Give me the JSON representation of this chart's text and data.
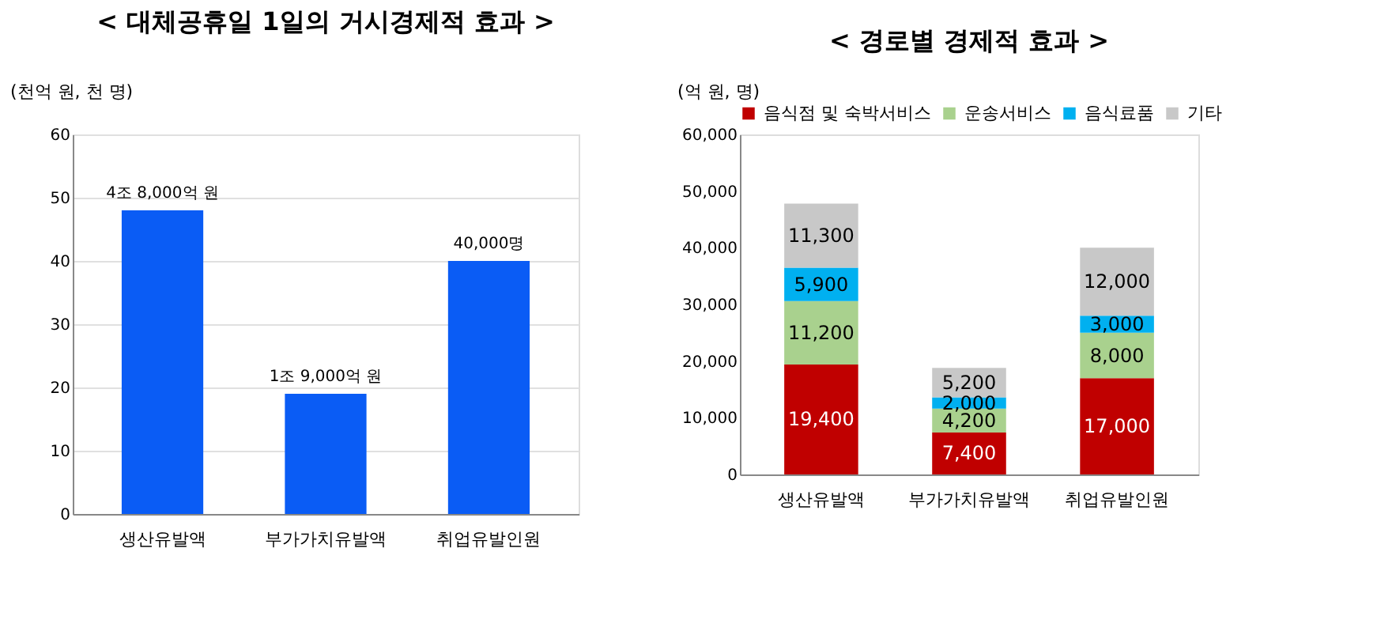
{
  "chart_data": [
    {
      "type": "bar",
      "title": "< 대체공휴일 1일의 거시경제적 효과 >",
      "ylabel": "(천억 원, 천 명)",
      "categories": [
        "생산유발액",
        "부가가치유발액",
        "취업유발인원"
      ],
      "values": [
        48,
        19,
        40
      ],
      "annotations": [
        {
          "text": "4조 8,000억 원",
          "x": "생산유발액",
          "y": 48
        },
        {
          "text": "1조 9,000억 원",
          "x": "부가가치유발액",
          "y": 19
        },
        {
          "text": "40,000명",
          "x": "취업유발인원",
          "y": 40
        }
      ],
      "color": "#0a5cf5",
      "ylim": [
        0,
        60
      ],
      "yticks": [
        0,
        10,
        20,
        30,
        40,
        50,
        60
      ],
      "grid": "y"
    },
    {
      "type": "bar",
      "title": "< 경로별 경제적 효과 >",
      "ylabel": "(억 원, 명)",
      "stacked": true,
      "categories": [
        "생산유발액",
        "부가가치유발액",
        "취업유발인원"
      ],
      "series": [
        {
          "name": "음식점 및 숙박서비스",
          "color": "#c00000",
          "values": [
            19400,
            7400,
            17000
          ],
          "value_labels": [
            "19,400",
            "7,400",
            "17,000"
          ]
        },
        {
          "name": "운송서비스",
          "color": "#a9d18e",
          "values": [
            11200,
            4200,
            8000
          ],
          "value_labels": [
            "11,200",
            "4,200",
            "8,000"
          ]
        },
        {
          "name": "음식료품",
          "color": "#00b0f0",
          "values": [
            5900,
            2000,
            3000
          ],
          "value_labels": [
            "5,900",
            "2,000",
            "3,000"
          ]
        },
        {
          "name": "기타",
          "color": "#c8c8c8",
          "values": [
            11300,
            5200,
            12000
          ],
          "value_labels": [
            "11,300",
            "5,200",
            "12,000"
          ]
        }
      ],
      "data_labels": true,
      "ylim": [
        0,
        60000
      ],
      "yticks": [
        0,
        {
          "value": 10000,
          "label": "10,000"
        },
        {
          "value": 20000,
          "label": "20,000"
        },
        {
          "value": 30000,
          "label": "30,000"
        },
        {
          "value": 40000,
          "label": "40,000"
        },
        {
          "value": 50000,
          "label": "50,000"
        },
        {
          "value": 60000,
          "label": "60,000"
        }
      ],
      "grid": false,
      "legend": "top"
    }
  ]
}
